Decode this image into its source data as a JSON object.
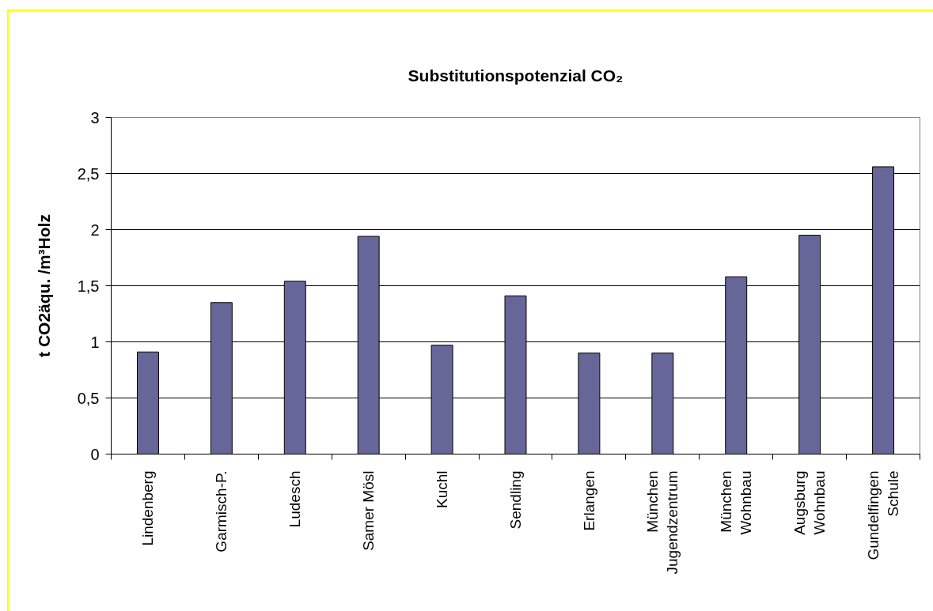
{
  "chart_data": {
    "type": "bar",
    "title": "Substitutionspotenzial CO₂",
    "ylabel": "t CO2äqu. /m³Holz",
    "categories": [
      "Lindenberg",
      "Garmisch-P.",
      "Ludesch",
      "Samer Mösl",
      "Kuchl",
      "Sendling",
      "Erlangen",
      "München Jugendzentrum",
      "München Wohnbau",
      "Augsburg Wohnbau",
      "Gundelfingen Schule"
    ],
    "values": [
      0.91,
      1.35,
      1.54,
      1.94,
      0.97,
      1.41,
      0.9,
      0.9,
      1.58,
      1.95,
      2.56
    ],
    "color": "#666699",
    "ylim": [
      0,
      3
    ],
    "yticks": [
      0,
      {
        "value": 0.5,
        "label": "0,5"
      },
      1,
      {
        "value": 1.5,
        "label": "1,5"
      },
      2,
      {
        "value": 2.5,
        "label": "2,5"
      },
      3
    ],
    "grid": "y"
  }
}
